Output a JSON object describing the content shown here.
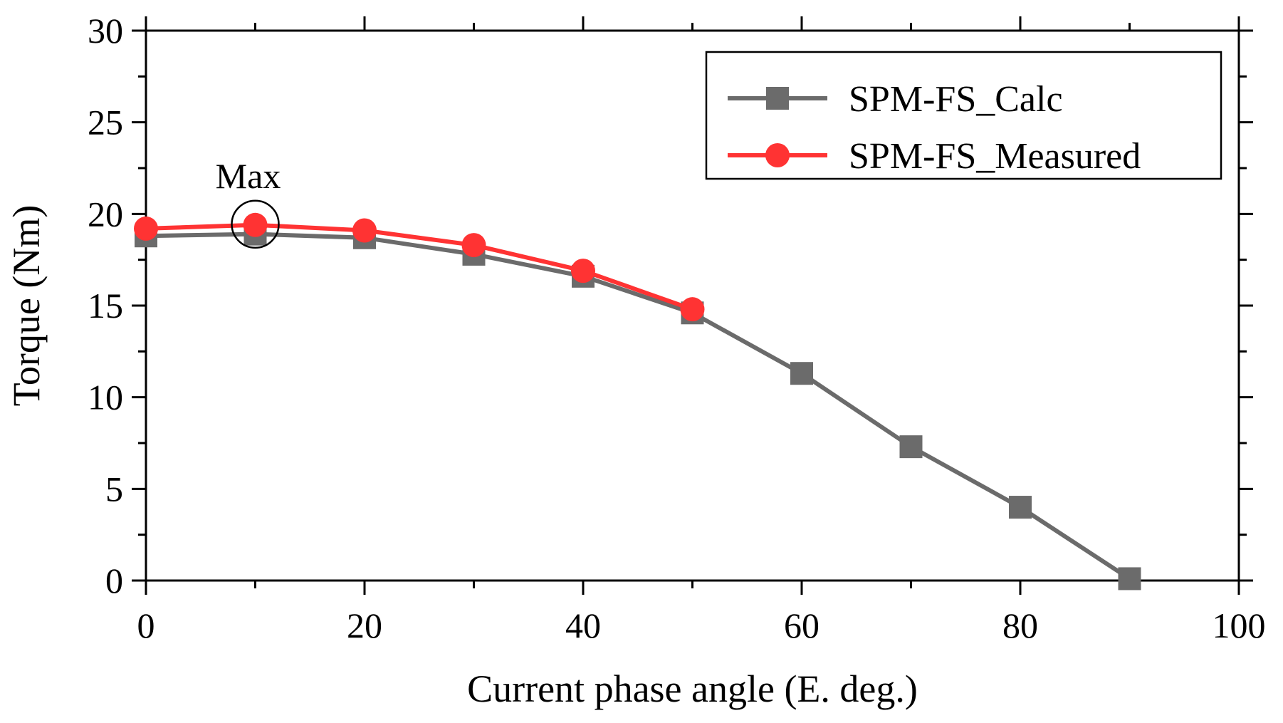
{
  "chart_data": {
    "type": "line",
    "xlabel": "Current phase angle (E. deg.)",
    "ylabel": "Torque (Nm)",
    "xlim": [
      0,
      100
    ],
    "ylim": [
      0,
      30
    ],
    "xticks": [
      0,
      20,
      40,
      60,
      80,
      100
    ],
    "yticks": [
      0,
      5,
      10,
      15,
      20,
      25,
      30
    ],
    "grid": false,
    "legend_position": "top-right",
    "series": [
      {
        "name": "SPM-FS_Calc",
        "color": "#6b6b6b",
        "marker": "square",
        "x": [
          0,
          10,
          20,
          30,
          40,
          50,
          60,
          70,
          80,
          90
        ],
        "values": [
          18.8,
          18.9,
          18.7,
          17.8,
          16.6,
          14.6,
          11.3,
          7.3,
          4.0,
          0.1
        ]
      },
      {
        "name": "SPM-FS_Measured",
        "color": "#ff3333",
        "marker": "circle",
        "x": [
          0,
          10,
          20,
          30,
          40,
          50
        ],
        "values": [
          19.2,
          19.4,
          19.1,
          18.3,
          16.9,
          14.8
        ]
      }
    ],
    "annotations": [
      {
        "text": "Max",
        "x": 10,
        "y": 19.4,
        "marker": "circle"
      }
    ]
  }
}
